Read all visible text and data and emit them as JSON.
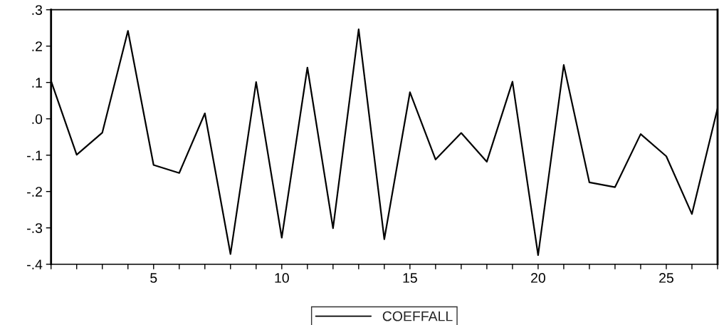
{
  "chart_data": {
    "type": "line",
    "x": [
      1,
      2,
      3,
      4,
      5,
      6,
      7,
      8,
      9,
      10,
      11,
      12,
      13,
      14,
      15,
      16,
      17,
      18,
      19,
      20,
      21,
      22,
      23,
      24,
      25,
      26,
      27
    ],
    "series": [
      {
        "name": "COEFFALL",
        "color": "#000000",
        "values": [
          0.104,
          -0.099,
          -0.038,
          0.242,
          -0.127,
          -0.149,
          0.015,
          -0.372,
          0.101,
          -0.327,
          0.141,
          -0.301,
          0.246,
          -0.331,
          0.073,
          -0.112,
          -0.039,
          -0.118,
          0.102,
          -0.375,
          0.148,
          -0.175,
          -0.188,
          -0.042,
          -0.103,
          -0.262,
          0.029
        ]
      }
    ],
    "xlim": [
      1,
      27
    ],
    "xticks": [
      {
        "value": 1,
        "label": null
      },
      {
        "value": 2,
        "label": null
      },
      {
        "value": 3,
        "label": null
      },
      {
        "value": 4,
        "label": null
      },
      5,
      {
        "value": 6,
        "label": null
      },
      {
        "value": 7,
        "label": null
      },
      {
        "value": 8,
        "label": null
      },
      {
        "value": 9,
        "label": null
      },
      10,
      {
        "value": 11,
        "label": null
      },
      {
        "value": 12,
        "label": null
      },
      {
        "value": 13,
        "label": null
      },
      {
        "value": 14,
        "label": null
      },
      15,
      {
        "value": 16,
        "label": null
      },
      {
        "value": 17,
        "label": null
      },
      {
        "value": 18,
        "label": null
      },
      {
        "value": 19,
        "label": null
      },
      20,
      {
        "value": 21,
        "label": null
      },
      {
        "value": 22,
        "label": null
      },
      {
        "value": 23,
        "label": null
      },
      {
        "value": 24,
        "label": null
      },
      25,
      {
        "value": 26,
        "label": null
      },
      {
        "value": 27,
        "label": null
      }
    ],
    "ylim": [
      -0.4,
      0.3
    ],
    "yticks": [
      {
        "value": -0.4,
        "label": "-.4"
      },
      {
        "value": -0.3,
        "label": "-.3"
      },
      {
        "value": -0.2,
        "label": "-.2"
      },
      {
        "value": -0.1,
        "label": "-.1"
      },
      {
        "value": 0,
        "label": ".0"
      },
      {
        "value": 0.1,
        "label": ".1"
      },
      {
        "value": 0.2,
        "label": ".2"
      },
      {
        "value": 0.3,
        "label": ".3"
      }
    ],
    "grid": false,
    "legend": "bottom",
    "marker": "none",
    "line_style": "solid"
  }
}
